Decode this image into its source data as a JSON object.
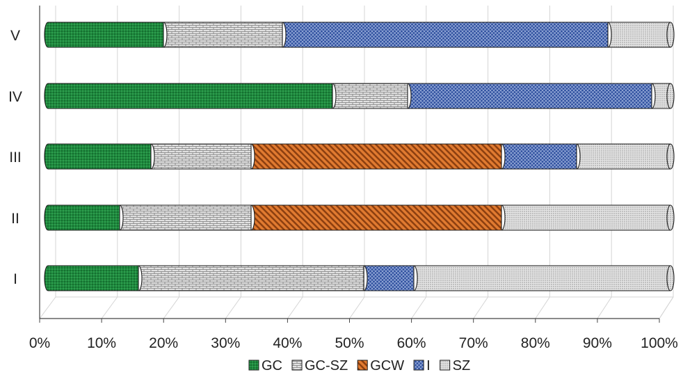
{
  "chart_data": {
    "type": "bar",
    "orientation": "horizontal",
    "stacked": "100%",
    "categories": [
      "I",
      "II",
      "III",
      "IV",
      "V"
    ],
    "series": [
      {
        "name": "GC",
        "color": "#1e8a3e",
        "values": [
          15,
          12,
          17,
          46,
          19
        ]
      },
      {
        "name": "GC-SZ",
        "color": "#d9d9d9",
        "values": [
          36,
          21,
          16,
          12,
          19
        ]
      },
      {
        "name": "GCW",
        "color": "#d9722a",
        "values": [
          0,
          40,
          40,
          0,
          0
        ]
      },
      {
        "name": "I",
        "color": "#2e4f9e",
        "values": [
          8,
          0,
          12,
          39,
          52
        ]
      },
      {
        "name": "SZ",
        "color": "#d0d0d0",
        "values": [
          41,
          27,
          15,
          3,
          10
        ]
      }
    ],
    "xlim": [
      0,
      100
    ],
    "x_tick_labels": [
      "0%",
      "10%",
      "20%",
      "30%",
      "40%",
      "50%",
      "60%",
      "70%",
      "80%",
      "90%",
      "100%"
    ],
    "grid": true,
    "legend_position": "bottom",
    "style": "3d-cylinder"
  }
}
